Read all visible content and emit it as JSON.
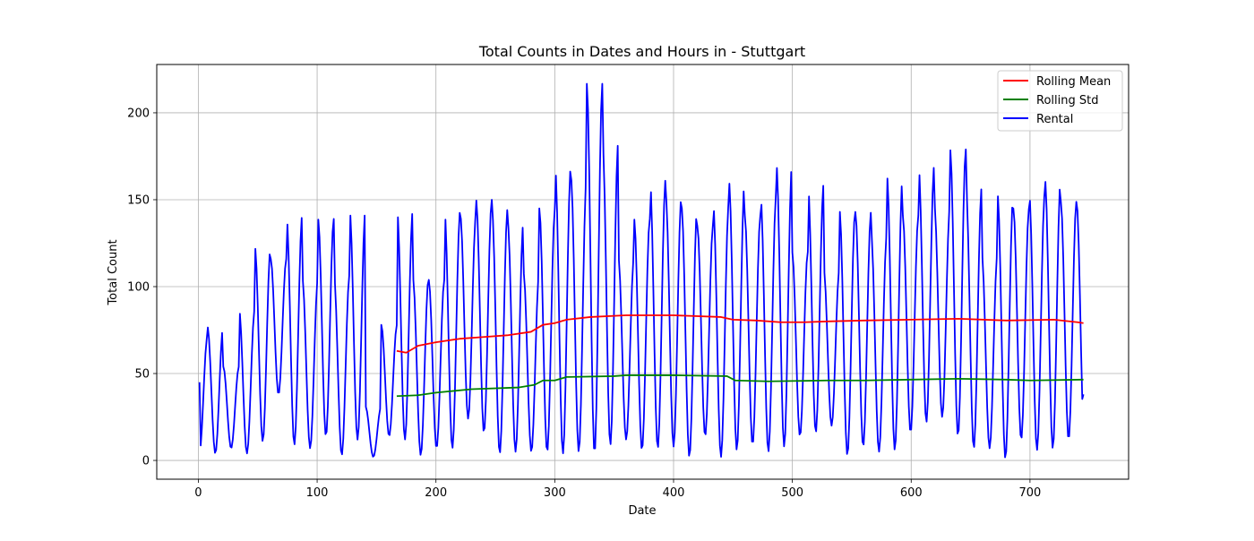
{
  "chart_data": {
    "type": "line",
    "title": "Total Counts in Dates and Hours in - Stuttgart",
    "xlabel": "Date",
    "ylabel": "Total Count",
    "xlim": [
      -35,
      783
    ],
    "ylim": [
      -10.8,
      227.8
    ],
    "xticks": [
      0,
      100,
      200,
      300,
      400,
      500,
      600,
      700
    ],
    "yticks": [
      0,
      50,
      100,
      150,
      200
    ],
    "grid": true,
    "legend_position": "top-right",
    "rental_shape": {
      "daily_peaks": [
        71,
        77,
        54,
        87,
        123,
        116,
        141,
        105,
        139,
        107,
        144,
        31,
        78,
        144,
        105,
        104,
        144,
        141,
        150,
        145,
        137,
        108,
        145,
        169,
        163,
        217,
        183,
        117,
        139,
        162,
        152,
        146,
        135,
        148,
        161,
        141,
        153,
        171,
        120,
        159,
        110,
        144,
        143,
        130,
        164,
        141,
        170,
        147,
        179,
        157,
        119,
        153,
        145,
        154,
        162,
        149
      ],
      "daily_troughs": [
        5,
        4,
        7,
        4,
        11,
        38,
        9,
        7,
        14,
        3,
        12,
        2,
        14,
        12,
        3,
        7,
        7,
        24,
        16,
        4,
        5,
        5,
        5,
        4,
        5,
        4,
        9,
        12,
        6,
        7,
        8,
        2,
        14,
        2,
        6,
        9,
        5,
        8,
        14,
        16,
        20,
        3,
        8,
        5,
        6,
        16,
        22,
        25,
        14,
        7,
        7,
        1,
        12,
        6,
        7,
        12
      ],
      "start": 45,
      "end": 38,
      "max": 217,
      "min": 1
    },
    "rolling_window": 168,
    "series": [
      {
        "name": "Rolling Mean",
        "color": "#ff0000",
        "x_start": 167,
        "x_end": 745,
        "points": [
          [
            167,
            63
          ],
          [
            175,
            62
          ],
          [
            185,
            66
          ],
          [
            200,
            68
          ],
          [
            220,
            70
          ],
          [
            240,
            71
          ],
          [
            260,
            72
          ],
          [
            280,
            74
          ],
          [
            290,
            78
          ],
          [
            300,
            79
          ],
          [
            310,
            81
          ],
          [
            330,
            82.5
          ],
          [
            360,
            83.5
          ],
          [
            400,
            83.5
          ],
          [
            440,
            82.5
          ],
          [
            450,
            81
          ],
          [
            470,
            80.5
          ],
          [
            490,
            79.5
          ],
          [
            510,
            79.5
          ],
          [
            530,
            80
          ],
          [
            560,
            80.5
          ],
          [
            600,
            81
          ],
          [
            640,
            81.5
          ],
          [
            680,
            80.5
          ],
          [
            720,
            81
          ],
          [
            740,
            79.5
          ],
          [
            745,
            79
          ]
        ]
      },
      {
        "name": "Rolling Std",
        "color": "#008000",
        "x_start": 167,
        "x_end": 745,
        "points": [
          [
            167,
            37
          ],
          [
            185,
            37.5
          ],
          [
            200,
            39
          ],
          [
            230,
            41
          ],
          [
            270,
            42
          ],
          [
            283,
            43.5
          ],
          [
            290,
            46
          ],
          [
            300,
            46
          ],
          [
            310,
            48
          ],
          [
            350,
            48.5
          ],
          [
            360,
            49
          ],
          [
            400,
            49
          ],
          [
            445,
            48.5
          ],
          [
            452,
            46
          ],
          [
            480,
            45.5
          ],
          [
            530,
            46
          ],
          [
            560,
            46
          ],
          [
            600,
            46.5
          ],
          [
            640,
            47
          ],
          [
            680,
            46.5
          ],
          [
            700,
            46
          ],
          [
            745,
            46.5
          ]
        ]
      },
      {
        "name": "Rental",
        "color": "#0000ff",
        "x_start": 1,
        "x_end": 745
      }
    ]
  }
}
